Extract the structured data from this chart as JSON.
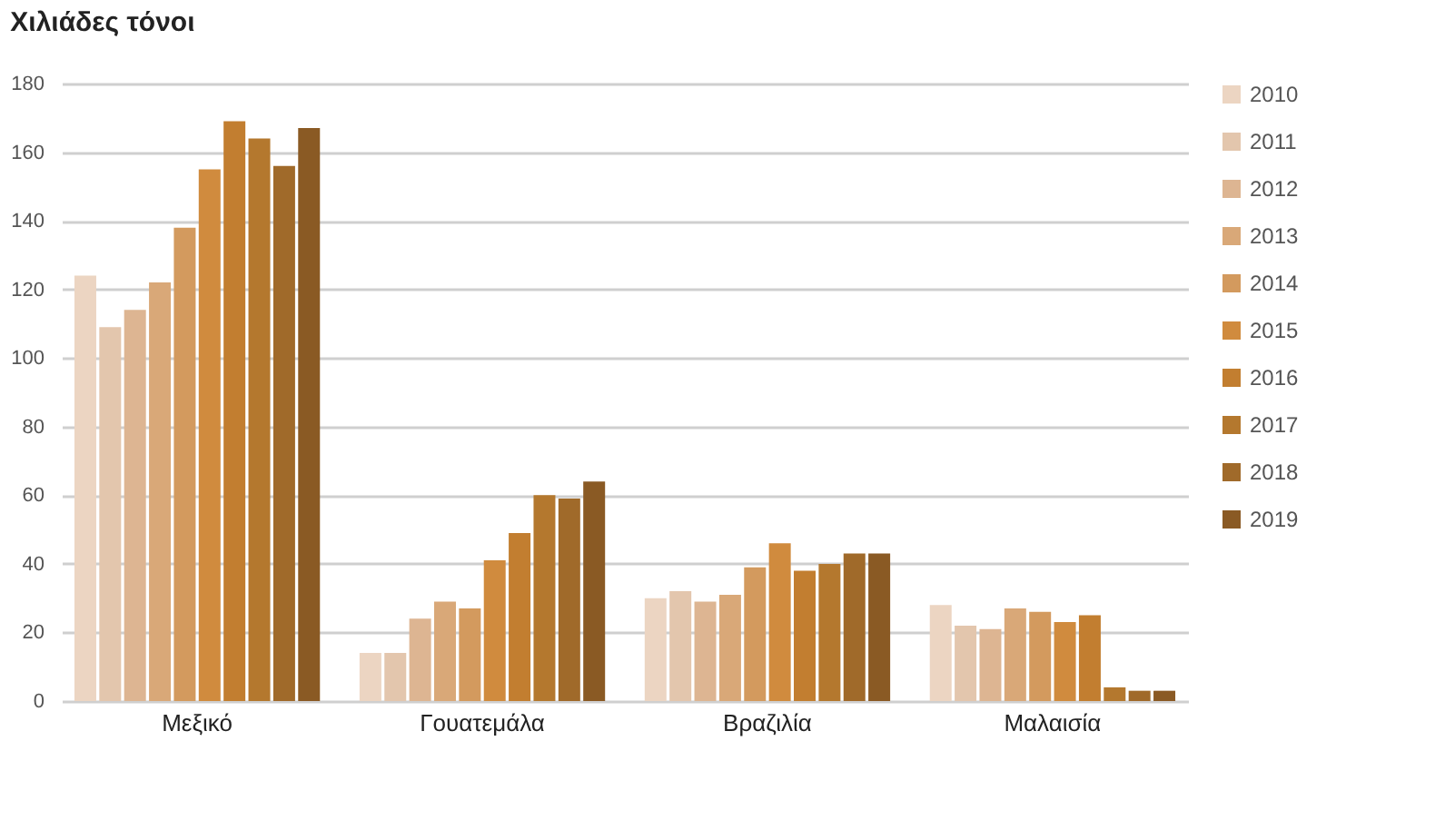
{
  "chart_data": {
    "type": "bar",
    "ylabel": "Χιλιάδες τόνοι",
    "categories": [
      "Μεξικό",
      "Γουατεμάλα",
      "Βραζιλία",
      "Μαλαισία"
    ],
    "series": [
      {
        "name": "2010",
        "color": "#ecd5c2",
        "values": [
          124,
          14,
          30,
          28
        ]
      },
      {
        "name": "2011",
        "color": "#e3c6ad",
        "values": [
          109,
          14,
          32,
          22
        ]
      },
      {
        "name": "2012",
        "color": "#ddb592",
        "values": [
          114,
          24,
          29,
          21
        ]
      },
      {
        "name": "2013",
        "color": "#d9a878",
        "values": [
          122,
          29,
          31,
          27
        ]
      },
      {
        "name": "2014",
        "color": "#d39a5e",
        "values": [
          138,
          27,
          39,
          26
        ]
      },
      {
        "name": "2015",
        "color": "#d08b3e",
        "values": [
          155,
          41,
          46,
          23
        ]
      },
      {
        "name": "2016",
        "color": "#c27e30",
        "values": [
          169,
          49,
          38,
          25
        ]
      },
      {
        "name": "2017",
        "color": "#b4782e",
        "values": [
          164,
          60,
          40,
          4
        ]
      },
      {
        "name": "2018",
        "color": "#a06a2a",
        "values": [
          156,
          59,
          43,
          3
        ]
      },
      {
        "name": "2019",
        "color": "#8a5a24",
        "values": [
          167,
          64,
          43,
          3
        ]
      }
    ],
    "ylim": [
      0,
      180
    ],
    "yticks": [
      0,
      20,
      40,
      60,
      80,
      100,
      120,
      140,
      160,
      180
    ],
    "grid": "y",
    "legend": "right"
  }
}
